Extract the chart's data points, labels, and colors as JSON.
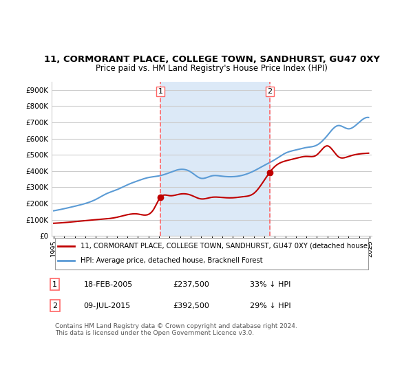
{
  "title": "11, CORMORANT PLACE, COLLEGE TOWN, SANDHURST, GU47 0XY",
  "subtitle": "Price paid vs. HM Land Registry's House Price Index (HPI)",
  "legend_line1": "11, CORMORANT PLACE, COLLEGE TOWN, SANDHURST, GU47 0XY (detached house)",
  "legend_line2": "HPI: Average price, detached house, Bracknell Forest",
  "footer": "Contains HM Land Registry data © Crown copyright and database right 2024.\nThis data is licensed under the Open Government Licence v3.0.",
  "transaction1_label": "1",
  "transaction1_date": "18-FEB-2005",
  "transaction1_price": "£237,500",
  "transaction1_hpi": "33% ↓ HPI",
  "transaction2_label": "2",
  "transaction2_date": "09-JUL-2015",
  "transaction2_price": "£392,500",
  "transaction2_hpi": "29% ↓ HPI",
  "hpi_color": "#5b9bd5",
  "price_color": "#c00000",
  "vline_color": "#ff6666",
  "shade_color": "#dce9f7",
  "ylim": [
    0,
    950000
  ],
  "yticks": [
    0,
    100000,
    200000,
    300000,
    400000,
    500000,
    600000,
    700000,
    800000,
    900000
  ],
  "ylabel_format": "£{0}K",
  "xstart_year": 1995,
  "xend_year": 2025,
  "transaction1_year": 2005.125,
  "transaction2_year": 2015.52,
  "transaction1_price_val": 237500,
  "transaction2_price_val": 392500
}
